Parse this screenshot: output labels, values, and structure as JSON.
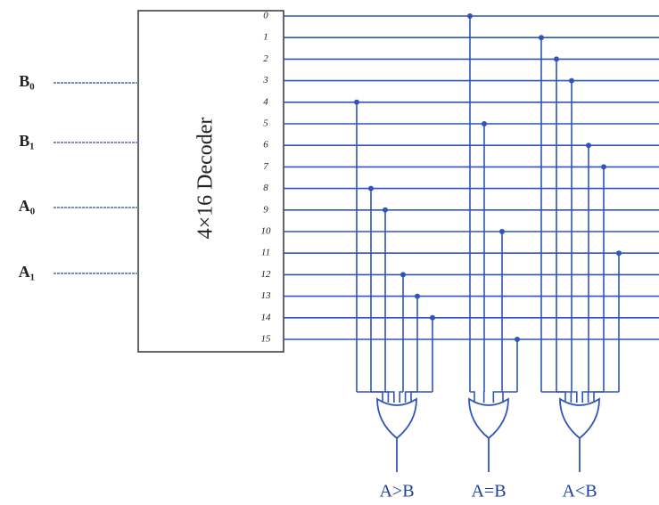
{
  "decoder": {
    "label": "4×16 Decoder",
    "outputs": [
      0,
      1,
      2,
      3,
      4,
      5,
      6,
      7,
      8,
      9,
      10,
      11,
      12,
      13,
      14,
      15
    ]
  },
  "inputs": [
    "B₀",
    "B₁",
    "A₀",
    "A₁"
  ],
  "gates": [
    {
      "label": "A>B"
    },
    {
      "label": "A=B"
    },
    {
      "label": "A<B"
    }
  ]
}
